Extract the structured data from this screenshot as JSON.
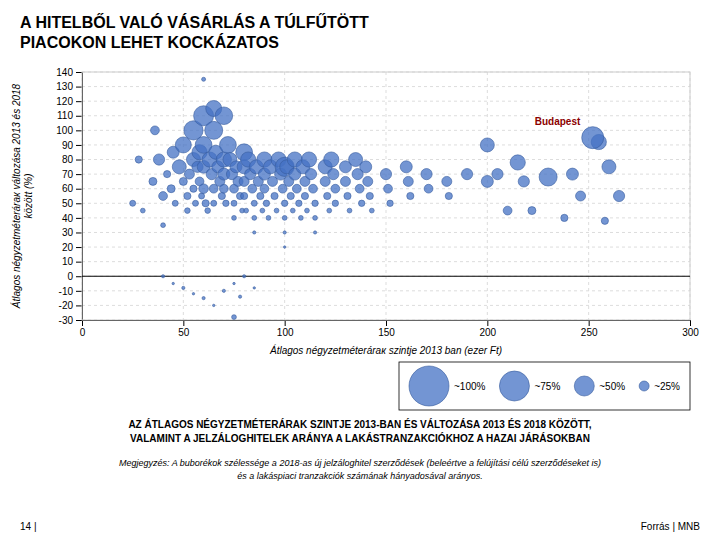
{
  "chart_data": {
    "type": "bubble",
    "title": "A HITELBŐL VALÓ VÁSÁRLÁS A TÚLFŰTÖTT\nPIACOKON LEHET KOCKÁZATOS",
    "subtitle": "AZ ÁTLAGOS NÉGYZETMÉTERÁRAK SZINTJE 2013-BAN ÉS VÁLTOZÁSA 2013 ÉS 2018 KÖZÖTT,\nVALAMINT A JELZÁLOGHITELEK ARÁNYA A LAKÁSTRANZAKCIÓKHOZ A HAZAI JÁRÁSOKBAN",
    "note": "Megjegyzés: A buborékok szélessége a 2018-as új jelzáloghitel szerződések (beleértve a felújítási célú szerződéseket is)\nés a lakáspiaci tranzakciók számának hányadosával arányos.",
    "footer_left": "14 |",
    "footer_right": "Forrás | MNB",
    "xlabel": "Átlagos négyzetméterárак szintje 2013 ban (ezer Ft)",
    "ylabel": "Átlagos négyzetméterárак változása 2013 és 2018\nközött (%)",
    "color": "#4472C4",
    "grid": true,
    "legend": "lower right",
    "xlim": [
      0,
      300
    ],
    "ylim": [
      -30,
      140
    ],
    "xticks": [
      0,
      50,
      100,
      150,
      200,
      250,
      300
    ],
    "yticks": [
      -30,
      -20,
      -10,
      0,
      10,
      20,
      30,
      40,
      50,
      60,
      70,
      80,
      90,
      100,
      110,
      120,
      130,
      140
    ],
    "hline": 0,
    "x": [
      25,
      28,
      30,
      35,
      36,
      38,
      40,
      40,
      42,
      44,
      45,
      46,
      48,
      50,
      50,
      52,
      52,
      53,
      55,
      55,
      55,
      56,
      57,
      58,
      58,
      59,
      60,
      60,
      60,
      60,
      61,
      62,
      63,
      64,
      65,
      65,
      65,
      66,
      67,
      68,
      69,
      70,
      70,
      70,
      71,
      72,
      73,
      74,
      75,
      75,
      75,
      76,
      77,
      78,
      79,
      80,
      80,
      80,
      80,
      81,
      82,
      83,
      84,
      85,
      85,
      85,
      86,
      87,
      88,
      89,
      90,
      90,
      90,
      91,
      92,
      93,
      94,
      95,
      96,
      97,
      98,
      99,
      100,
      100,
      100,
      100,
      100,
      101,
      102,
      103,
      104,
      105,
      105,
      106,
      107,
      108,
      109,
      110,
      110,
      111,
      112,
      113,
      114,
      115,
      115,
      115,
      120,
      120,
      121,
      122,
      123,
      124,
      125,
      125,
      130,
      130,
      131,
      132,
      135,
      136,
      137,
      138,
      140,
      141,
      142,
      143,
      150,
      151,
      152,
      160,
      161,
      162,
      170,
      171,
      180,
      181,
      190,
      200,
      40,
      45,
      50,
      55,
      60,
      65,
      70,
      75,
      78,
      80,
      85,
      75,
      60,
      65,
      70,
      200,
      205,
      210,
      215,
      218,
      222,
      230,
      238,
      242,
      246,
      255,
      258,
      260,
      265,
      252
    ],
    "values": [
      50,
      80,
      45,
      65,
      100,
      80,
      55,
      35,
      70,
      60,
      85,
      50,
      75,
      90,
      65,
      55,
      45,
      70,
      100,
      80,
      60,
      50,
      75,
      85,
      65,
      55,
      110,
      90,
      75,
      60,
      50,
      45,
      80,
      70,
      60,
      50,
      100,
      85,
      75,
      65,
      55,
      80,
      70,
      60,
      50,
      90,
      80,
      70,
      60,
      50,
      40,
      75,
      65,
      55,
      45,
      85,
      75,
      65,
      55,
      45,
      80,
      70,
      60,
      50,
      40,
      30,
      75,
      65,
      55,
      45,
      80,
      70,
      60,
      50,
      40,
      75,
      65,
      55,
      45,
      80,
      70,
      60,
      75,
      50,
      40,
      30,
      20,
      75,
      65,
      55,
      45,
      80,
      70,
      60,
      50,
      40,
      75,
      65,
      55,
      45,
      80,
      70,
      60,
      50,
      40,
      30,
      75,
      65,
      55,
      45,
      80,
      70,
      60,
      50,
      75,
      65,
      55,
      45,
      80,
      70,
      60,
      50,
      75,
      65,
      55,
      45,
      70,
      60,
      50,
      75,
      65,
      55,
      70,
      60,
      65,
      55,
      70,
      65,
      0,
      -5,
      -8,
      -12,
      -15,
      -20,
      -10,
      -5,
      -14,
      0,
      -8,
      -28,
      135,
      115,
      110,
      90,
      70,
      45,
      78,
      65,
      45,
      68,
      40,
      70,
      55,
      92,
      38,
      75,
      55,
      95
    ],
    "sizes": [
      15,
      18,
      12,
      20,
      22,
      28,
      22,
      12,
      18,
      20,
      30,
      15,
      35,
      40,
      20,
      18,
      14,
      25,
      48,
      35,
      18,
      15,
      28,
      38,
      22,
      15,
      50,
      42,
      32,
      24,
      18,
      14,
      38,
      28,
      22,
      15,
      45,
      35,
      30,
      25,
      18,
      38,
      30,
      22,
      16,
      42,
      35,
      28,
      22,
      15,
      12,
      30,
      25,
      18,
      12,
      42,
      35,
      25,
      18,
      12,
      38,
      28,
      22,
      15,
      12,
      8,
      35,
      25,
      18,
      12,
      38,
      30,
      22,
      16,
      12,
      35,
      25,
      18,
      12,
      38,
      30,
      22,
      48,
      16,
      12,
      8,
      6,
      35,
      25,
      18,
      12,
      38,
      30,
      22,
      16,
      12,
      35,
      25,
      18,
      12,
      38,
      28,
      22,
      16,
      12,
      8,
      35,
      25,
      18,
      12,
      38,
      28,
      22,
      16,
      30,
      25,
      18,
      12,
      35,
      28,
      22,
      16,
      30,
      25,
      18,
      12,
      28,
      22,
      16,
      30,
      25,
      18,
      28,
      22,
      25,
      18,
      28,
      30,
      8,
      6,
      8,
      6,
      8,
      6,
      8,
      6,
      8,
      8,
      6,
      12,
      10,
      40,
      44,
      35,
      28,
      22,
      38,
      28,
      20,
      45,
      18,
      30,
      25,
      38,
      18,
      35,
      28,
      55
    ],
    "size_legend": {
      "labels": [
        "~100%",
        "~75%",
        "~50%",
        "~25%"
      ],
      "sizes": [
        100,
        75,
        50,
        25
      ]
    },
    "annotations": [
      {
        "text": "Budapest",
        "x": 252,
        "y": 95,
        "color": "darkred"
      }
    ]
  }
}
